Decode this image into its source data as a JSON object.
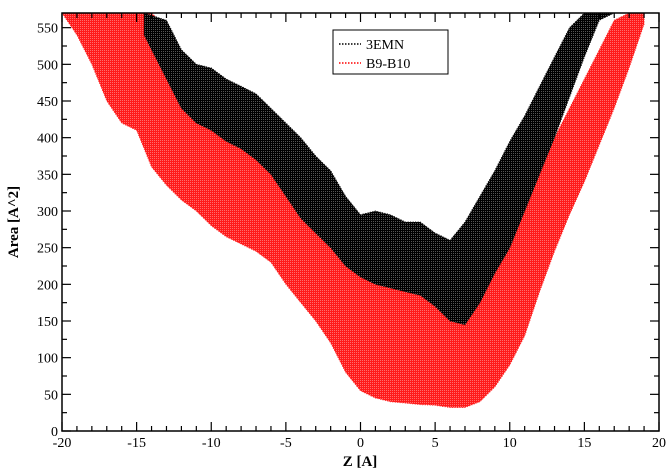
{
  "chart_data": {
    "type": "area",
    "title": "",
    "xlabel": "Z [A]",
    "ylabel": "Area [A^2]",
    "xlim": [
      -20,
      20
    ],
    "ylim": [
      0,
      570
    ],
    "x_ticks": [
      -20,
      -15,
      -10,
      -5,
      0,
      5,
      10,
      15,
      20
    ],
    "y_ticks": [
      0,
      50,
      100,
      150,
      200,
      250,
      300,
      350,
      400,
      450,
      500,
      550
    ],
    "grid": false,
    "legend_position": "top-center",
    "series": [
      {
        "name": "3EMN",
        "color": "#000000",
        "style": "dotted",
        "x": [
          -14.5,
          -13,
          -12,
          -11,
          -10,
          -9,
          -8,
          -7,
          -6,
          -5,
          -4,
          -3,
          -2,
          -1,
          0,
          1,
          2,
          3,
          4,
          5,
          6,
          7,
          8,
          9,
          10,
          11,
          12,
          13,
          14,
          15,
          16,
          17
        ],
        "upper": [
          570,
          560,
          520,
          500,
          495,
          480,
          470,
          460,
          440,
          420,
          400,
          375,
          355,
          320,
          295,
          300,
          295,
          285,
          285,
          270,
          260,
          285,
          320,
          355,
          395,
          430,
          470,
          510,
          550,
          570,
          570,
          570
        ],
        "lower": [
          540,
          480,
          440,
          420,
          410,
          395,
          385,
          370,
          350,
          320,
          290,
          270,
          250,
          225,
          210,
          200,
          195,
          190,
          185,
          170,
          150,
          145,
          175,
          215,
          250,
          300,
          350,
          400,
          455,
          510,
          560,
          570
        ]
      },
      {
        "name": "B9-B10",
        "color": "#ff0000",
        "style": "dotted",
        "x": [
          -20,
          -19,
          -18,
          -17,
          -16,
          -15,
          -14,
          -13,
          -12,
          -11,
          -10,
          -9,
          -8,
          -7,
          -6,
          -5,
          -4,
          -3,
          -2,
          -1,
          0,
          1,
          2,
          3,
          4,
          5,
          6,
          7,
          8,
          9,
          10,
          11,
          12,
          13,
          14,
          15,
          16,
          17,
          18,
          19
        ],
        "upper": [
          570,
          570,
          570,
          570,
          570,
          570,
          570,
          550,
          500,
          470,
          445,
          425,
          420,
          400,
          370,
          340,
          310,
          285,
          260,
          230,
          215,
          210,
          205,
          200,
          195,
          180,
          160,
          160,
          190,
          230,
          270,
          310,
          360,
          400,
          440,
          480,
          520,
          560,
          570,
          570
        ],
        "lower": [
          570,
          540,
          500,
          450,
          420,
          410,
          360,
          335,
          315,
          300,
          280,
          265,
          255,
          245,
          230,
          200,
          175,
          150,
          120,
          80,
          55,
          45,
          40,
          38,
          36,
          35,
          32,
          32,
          40,
          60,
          90,
          130,
          190,
          245,
          295,
          340,
          390,
          440,
          495,
          555
        ]
      }
    ]
  }
}
